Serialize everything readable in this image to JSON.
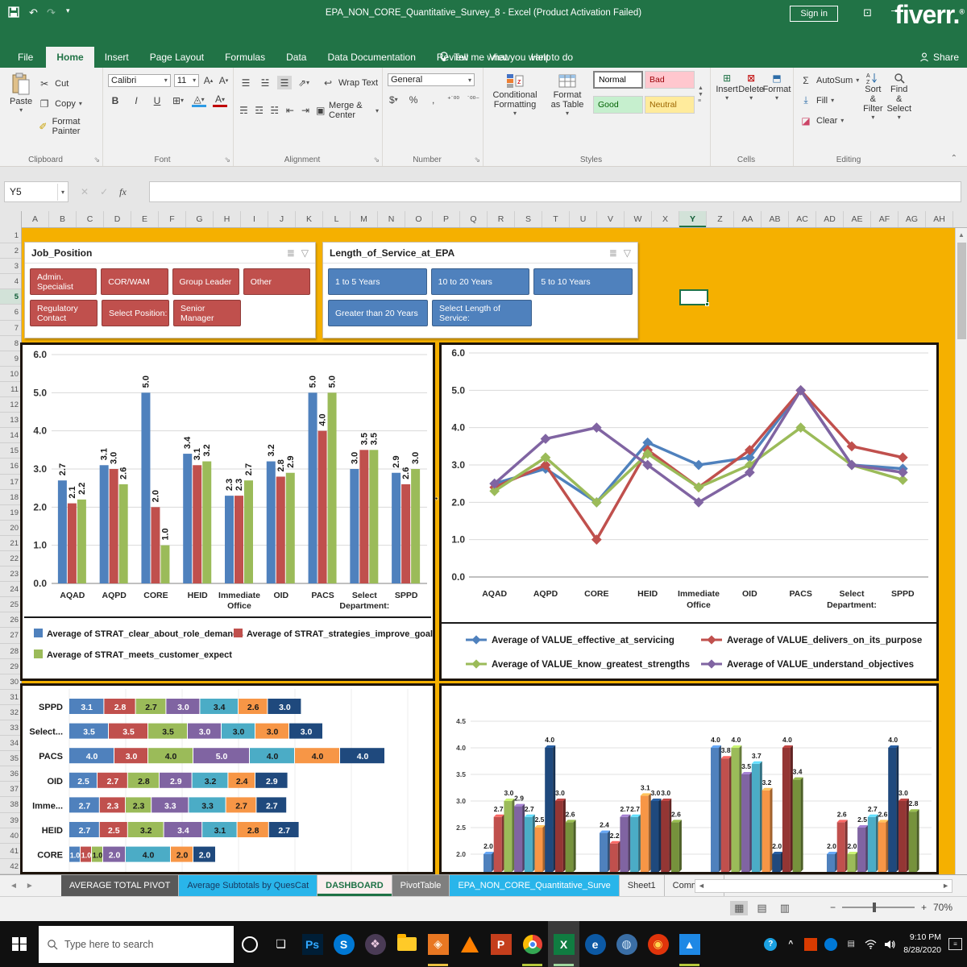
{
  "titlebar": {
    "title": "EPA_NON_CORE_Quantitative_Survey_8  -  Excel (Product Activation Failed)",
    "sign_in": "Sign in",
    "brand": "fiverr."
  },
  "icons": {
    "undo": "↶",
    "redo": "↷",
    "dropdown": "▾",
    "dialog_launcher": "⇘",
    "close": "✕",
    "check": "✓",
    "fx": "fx",
    "collapse_ribbon": "⌃",
    "add_tab": "⊕",
    "left_arrow": "◄",
    "right_arrow": "►",
    "up_arrow": "▲",
    "multi_select": "≣",
    "filter": "▽",
    "cursor": "↔",
    "view_normal": "▦",
    "view_layout": "▤",
    "view_break": "▥",
    "minus": "−",
    "plus": "+",
    "minimize": "—",
    "ribbon_display": "⊡",
    "bullet_person": "⎔"
  },
  "ribbon_tabs": [
    {
      "label": "File",
      "file": true
    },
    {
      "label": "Home",
      "active": true
    },
    {
      "label": "Insert"
    },
    {
      "label": "Page Layout"
    },
    {
      "label": "Formulas"
    },
    {
      "label": "Data"
    },
    {
      "label": "Data Documentation"
    },
    {
      "label": "Review"
    },
    {
      "label": "View"
    },
    {
      "label": "Help"
    }
  ],
  "tell_me": "Tell me what you want to do",
  "share_label": "Share",
  "ribbon": {
    "clipboard": {
      "label": "Clipboard",
      "paste": "Paste",
      "cut": "Cut",
      "copy": "Copy",
      "format_painter": "Format Painter"
    },
    "font": {
      "label": "Font",
      "family": "Calibri",
      "size": "11",
      "bold": "B",
      "italic": "I",
      "underline": "U"
    },
    "alignment": {
      "label": "Alignment",
      "wrap_text": "Wrap Text",
      "merge_center": "Merge & Center"
    },
    "number": {
      "label": "Number",
      "format": "General",
      "currency": "$",
      "percent": "%",
      "comma": ",",
      "inc_dec": "⁺˙⁰⁰",
      "dec_dec": "˙⁰⁰⁻"
    },
    "styles": {
      "label": "Styles",
      "conditional": "Conditional Formatting",
      "format_table": "Format as Table",
      "gallery": [
        {
          "name": "Normal",
          "bg": "#FFFFFF",
          "fg": "#000000"
        },
        {
          "name": "Bad",
          "bg": "#FFC7CE",
          "fg": "#9C0006"
        },
        {
          "name": "Good",
          "bg": "#C6EFCE",
          "fg": "#006100"
        },
        {
          "name": "Neutral",
          "bg": "#FFEB9C",
          "fg": "#9C6500"
        }
      ]
    },
    "cells": {
      "label": "Cells",
      "insert": "Insert",
      "delete": "Delete",
      "format": "Format"
    },
    "editing": {
      "label": "Editing",
      "autosum": "AutoSum",
      "fill": "Fill",
      "clear": "Clear",
      "sort": "Sort & Filter",
      "find": "Find & Select"
    }
  },
  "formula_bar": {
    "name_box": "Y5",
    "formula": ""
  },
  "grid": {
    "columns": [
      "A",
      "B",
      "C",
      "D",
      "E",
      "F",
      "G",
      "H",
      "I",
      "J",
      "K",
      "L",
      "M",
      "N",
      "O",
      "P",
      "Q",
      "R",
      "S",
      "T",
      "U",
      "V",
      "W",
      "X",
      "Y",
      "Z",
      "AA",
      "AB",
      "AC",
      "AD",
      "AE",
      "AF",
      "AG",
      "AH"
    ],
    "row_count": 42,
    "selected_column": "Y",
    "selected_row": 5,
    "selected_cell": "Y5",
    "dashboard_bg": "#F5B000"
  },
  "slicers": [
    {
      "title": "Job_Position",
      "color": "#C0504D",
      "rows": [
        [
          "Admin. Specialist",
          "COR/WAM",
          "Group Leader",
          "Other"
        ],
        [
          "Regulatory Contact",
          "Select Position:",
          "Senior Manager"
        ]
      ]
    },
    {
      "title": "Length_of_Service_at_EPA",
      "color": "#4F81BD",
      "rows": [
        [
          "1 to 5 Years",
          "10 to 20 Years",
          "5 to 10 Years"
        ],
        [
          "Greater than 20 Years",
          "Select Length of Service:"
        ]
      ]
    }
  ],
  "chart_data": [
    {
      "type": "bar",
      "title": "",
      "categories": [
        "AQAD",
        "AQPD",
        "CORE",
        "HEID",
        "Immediate Office",
        "OID",
        "PACS",
        "Select Department:",
        "SPPD"
      ],
      "series": [
        {
          "name": "Average of STRAT_clear_about_role_demands",
          "color": "#4F81BD",
          "values": [
            2.7,
            3.1,
            5.0,
            3.4,
            2.3,
            3.2,
            5.0,
            3.0,
            2.9
          ]
        },
        {
          "name": "Average of STRAT_strategies_improve_goals",
          "color": "#C0504D",
          "values": [
            2.1,
            3.0,
            2.0,
            3.1,
            2.3,
            2.8,
            4.0,
            3.5,
            2.6
          ]
        },
        {
          "name": "Average of STRAT_meets_customer_expect",
          "color": "#9BBB59",
          "values": [
            2.2,
            2.6,
            1.0,
            3.2,
            2.7,
            2.9,
            5.0,
            3.5,
            3.0
          ]
        }
      ],
      "ylim": [
        0,
        6
      ],
      "ytick_step": 1,
      "grid": true,
      "legend_position": "bottom"
    },
    {
      "type": "line",
      "title": "",
      "categories": [
        "AQAD",
        "AQPD",
        "CORE",
        "HEID",
        "Immediate Office",
        "OID",
        "PACS",
        "Select Department:",
        "SPPD"
      ],
      "series": [
        {
          "name": "Average of VALUE_effective_at_servicing",
          "color": "#4F81BD",
          "values": [
            2.5,
            2.9,
            2.0,
            3.6,
            3.0,
            3.2,
            5.0,
            3.0,
            2.9
          ]
        },
        {
          "name": "Average of VALUE_delivers_on_its_purpose",
          "color": "#C0504D",
          "values": [
            2.4,
            3.0,
            1.0,
            3.4,
            2.4,
            3.4,
            5.0,
            3.5,
            3.2
          ]
        },
        {
          "name": "Average of VALUE_know_greatest_strengths",
          "color": "#9BBB59",
          "values": [
            2.3,
            3.2,
            2.0,
            3.3,
            2.4,
            3.0,
            4.0,
            3.0,
            2.6
          ]
        },
        {
          "name": "Average of VALUE_understand_objectives",
          "color": "#8064A2",
          "values": [
            2.5,
            3.7,
            4.0,
            3.0,
            2.0,
            2.8,
            5.0,
            3.0,
            2.8
          ]
        }
      ],
      "ylim": [
        0,
        6
      ],
      "ytick_step": 1,
      "grid": true,
      "legend_position": "bottom"
    },
    {
      "type": "bar",
      "orientation": "horizontal-stacked",
      "title": "",
      "rows": [
        {
          "label": "SPPD",
          "values": [
            3.1,
            2.8,
            2.7,
            3.0,
            3.4,
            2.6,
            3.0
          ]
        },
        {
          "label": "Select...",
          "values": [
            3.5,
            3.5,
            3.5,
            3.0,
            3.0,
            3.0,
            3.0
          ]
        },
        {
          "label": "PACS",
          "values": [
            4.0,
            3.0,
            4.0,
            5.0,
            4.0,
            4.0,
            4.0
          ]
        },
        {
          "label": "OID",
          "values": [
            2.5,
            2.7,
            2.8,
            2.9,
            3.2,
            2.4,
            2.9
          ]
        },
        {
          "label": "Imme...",
          "values": [
            2.7,
            2.3,
            2.3,
            3.3,
            3.3,
            2.7,
            2.7
          ]
        },
        {
          "label": "HEID",
          "values": [
            2.7,
            2.5,
            3.2,
            3.4,
            3.1,
            2.8,
            2.7
          ]
        },
        {
          "label": "CORE",
          "values": [
            1.0,
            1.0,
            1.0,
            2.0,
            4.0,
            2.0,
            2.0
          ]
        }
      ],
      "segment_colors": [
        "#4F81BD",
        "#C0504D",
        "#9BBB59",
        "#8064A2",
        "#4BACC6",
        "#F79646",
        "#1F497D"
      ],
      "note": "chart cropped at bottom by sheet tab bar; legend not visible"
    },
    {
      "type": "bar",
      "style": "3d-clustered",
      "title": "",
      "yticks": [
        2.0,
        2.5,
        3.0,
        3.5,
        4.0,
        4.5
      ],
      "series_colors": [
        "#4F81BD",
        "#C0504D",
        "#9BBB59",
        "#8064A2",
        "#4BACC6",
        "#F79646",
        "#1F497D",
        "#943634",
        "#76923C"
      ],
      "groups": [
        [
          2.0,
          2.7,
          3.0,
          2.9,
          2.7,
          2.5,
          4.0,
          3.0,
          2.6
        ],
        [
          2.4,
          2.2,
          null,
          2.7,
          2.7,
          3.1,
          3.0,
          3.0,
          2.6
        ],
        [
          4.0,
          3.8,
          4.0,
          3.5,
          3.7,
          3.2,
          2.0,
          4.0,
          3.4
        ],
        [
          2.0,
          2.6,
          2.0,
          2.5,
          2.7,
          2.6,
          4.0,
          3.0,
          2.8
        ]
      ],
      "note": "chart cropped at bottom; category labels not visible"
    }
  ],
  "sheet_tabs": [
    {
      "label": "AVERAGE TOTAL PIVOT",
      "bg": "#595959",
      "fg": "#FFFFFF"
    },
    {
      "label": "Average Subtotals by QuesCat",
      "bg": "#29B5EA",
      "fg": "#17375E"
    },
    {
      "label": "DASHBOARD",
      "bg": "#FAEEEE",
      "fg": "#1E7145",
      "active": true
    },
    {
      "label": "PivotTable",
      "bg": "#7F7F7F",
      "fg": "#FFFFFF"
    },
    {
      "label": "EPA_NON_CORE_Quantitative_Surve",
      "bg": "#29B5EA",
      "fg": "#FFFFFF"
    },
    {
      "label": "Sheet1",
      "bg": "#F1F1F1",
      "fg": "#333333"
    },
    {
      "label": "Comments",
      "bg": "#F1F1F1",
      "fg": "#333333"
    }
  ],
  "status_bar": {
    "zoom": "70%"
  },
  "taskbar": {
    "search_placeholder": "Type here to search",
    "time": "9:10 PM",
    "date": "8/28/2020",
    "apps": [
      {
        "name": "cortana",
        "kind": "ring"
      },
      {
        "name": "task-view",
        "kind": "glyph",
        "glyph": "❏",
        "fg": "#FFFFFF",
        "bg": "transparent"
      },
      {
        "name": "photoshop",
        "kind": "glyph",
        "glyph": "Ps",
        "fg": "#31A8FF",
        "bg": "#001E36"
      },
      {
        "name": "skype",
        "kind": "glyph",
        "glyph": "S",
        "fg": "#FFFFFF",
        "bg": "#0078D4",
        "round": true
      },
      {
        "name": "paint-app",
        "kind": "glyph",
        "glyph": "❖",
        "fg": "#E8C7DE",
        "bg": "#4A3B55",
        "round": true
      },
      {
        "name": "explorer",
        "kind": "folder"
      },
      {
        "name": "orange-app",
        "kind": "glyph",
        "glyph": "◈",
        "fg": "#FFF3E0",
        "bg": "#E87722",
        "underline": "#E8C040"
      },
      {
        "name": "vlc",
        "kind": "cone"
      },
      {
        "name": "powerpoint",
        "kind": "glyph",
        "glyph": "P",
        "fg": "#FFFFFF",
        "bg": "#C43E1C"
      },
      {
        "name": "chrome",
        "kind": "chrome",
        "underline": "#B5C93C"
      },
      {
        "name": "excel",
        "kind": "glyph",
        "glyph": "X",
        "fg": "#FFFFFF",
        "bg": "#107C41",
        "active": true,
        "underline": "#9FD89F"
      },
      {
        "name": "edge",
        "kind": "glyph",
        "glyph": "e",
        "fg": "#FFFFFF",
        "bg": "#0C59A4",
        "round": true
      },
      {
        "name": "globe-app",
        "kind": "glyph",
        "glyph": "◍",
        "fg": "#CFE5F7",
        "bg": "#3A6EA5",
        "round": true
      },
      {
        "name": "firefox",
        "kind": "glyph",
        "glyph": "◉",
        "fg": "#FFD54F",
        "bg": "#E0340B",
        "round": true
      },
      {
        "name": "photos",
        "kind": "glyph",
        "glyph": "▲",
        "fg": "#FFFFFF",
        "bg": "#1E88E5",
        "underline": "#B5C93C"
      }
    ],
    "tray": [
      {
        "name": "help",
        "kind": "glyph",
        "glyph": "?",
        "fg": "#FFFFFF",
        "bg": "#1BA1E2",
        "round": true
      },
      {
        "name": "tray-chevron",
        "kind": "glyph",
        "glyph": "^",
        "fg": "#FFFFFF",
        "bg": "transparent"
      },
      {
        "name": "tray-orange",
        "kind": "glyph",
        "glyph": "",
        "fg": "#FFFFFF",
        "bg": "#D83B01"
      },
      {
        "name": "tray-blue",
        "kind": "glyph",
        "glyph": "",
        "fg": "#FFFFFF",
        "bg": "#0078D7",
        "round": true
      },
      {
        "name": "keyboard",
        "kind": "glyph",
        "glyph": "▤",
        "fg": "#DDDDDD",
        "bg": "transparent"
      },
      {
        "name": "wifi",
        "kind": "wifi"
      },
      {
        "name": "volume",
        "kind": "volume"
      }
    ]
  },
  "colors": {
    "excel_green": "#217346",
    "dashboard_orange": "#F5B000",
    "slicer_red": "#C0504D",
    "slicer_blue": "#4F81BD"
  }
}
